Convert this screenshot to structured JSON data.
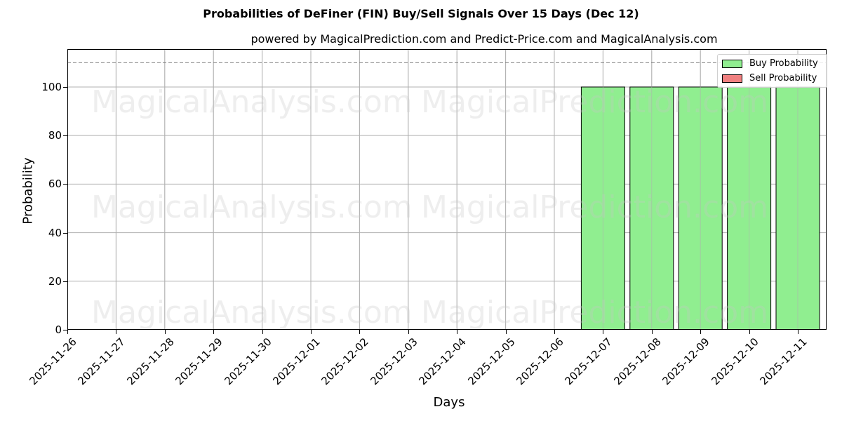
{
  "chart_data": {
    "type": "bar",
    "title": "Probabilities of DeFiner (FIN) Buy/Sell Signals Over 15 Days (Dec 12)",
    "subtitle": "powered by MagicalPrediction.com and Predict-Price.com and MagicalAnalysis.com",
    "xlabel": "Days",
    "ylabel": "Probability",
    "categories": [
      "2025-11-26",
      "2025-11-27",
      "2025-11-28",
      "2025-11-29",
      "2025-11-30",
      "2025-12-01",
      "2025-12-02",
      "2025-12-03",
      "2025-12-04",
      "2025-12-05",
      "2025-12-06",
      "2025-12-07",
      "2025-12-08",
      "2025-12-09",
      "2025-12-10",
      "2025-12-11"
    ],
    "series": [
      {
        "name": "Buy Probability",
        "color": "#90ee90",
        "values": [
          0,
          0,
          0,
          0,
          0,
          0,
          0,
          0,
          0,
          0,
          0,
          100,
          100,
          100,
          100,
          100
        ]
      },
      {
        "name": "Sell Probability",
        "color": "#f08080",
        "values": [
          0,
          0,
          0,
          0,
          0,
          0,
          0,
          0,
          0,
          0,
          0,
          0,
          0,
          0,
          0,
          0
        ]
      }
    ],
    "yticks": [
      0,
      20,
      40,
      60,
      80,
      100
    ],
    "ylim": [
      0,
      115.6
    ],
    "reference_line": {
      "y": 110,
      "style": "dashed",
      "color": "#808080"
    },
    "grid": true,
    "legend_position": "upper right",
    "watermarks": [
      "MagicalAnalysis.com",
      "MagicalPrediction.com"
    ]
  }
}
